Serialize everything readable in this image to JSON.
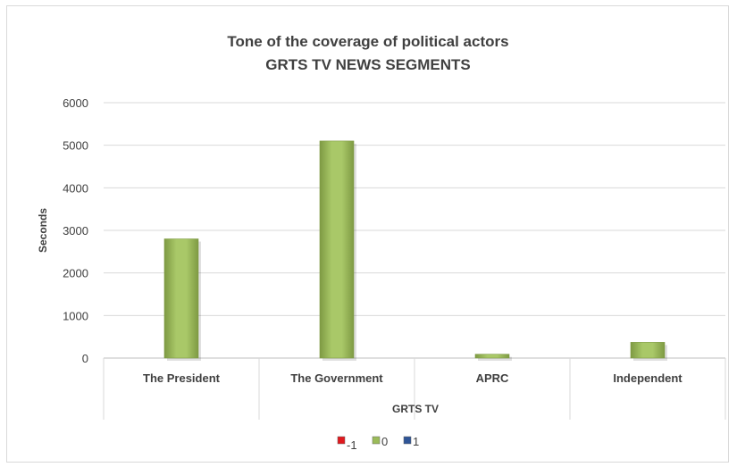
{
  "chart_data": {
    "type": "bar",
    "title": "Tone of the coverage of political actors",
    "subtitle": "GRTS TV NEWS SEGMENTS",
    "ylabel": "Seconds",
    "xlabel": "GRTS TV",
    "ylim": [
      0,
      6000
    ],
    "yticks": [
      0,
      1000,
      2000,
      3000,
      4000,
      5000,
      6000
    ],
    "grid": true,
    "legend_position": "bottom",
    "categories": [
      "The President",
      "The Government",
      "APRC",
      "Independent"
    ],
    "series": [
      {
        "name": "-1",
        "color": "#e0191e",
        "values": [
          0,
          0,
          0,
          0
        ]
      },
      {
        "name": "0",
        "color": "#9bbb59",
        "values": [
          2800,
          5100,
          90,
          370
        ]
      },
      {
        "name": "1",
        "color": "#2f5597",
        "values": [
          0,
          0,
          0,
          0
        ]
      }
    ]
  }
}
